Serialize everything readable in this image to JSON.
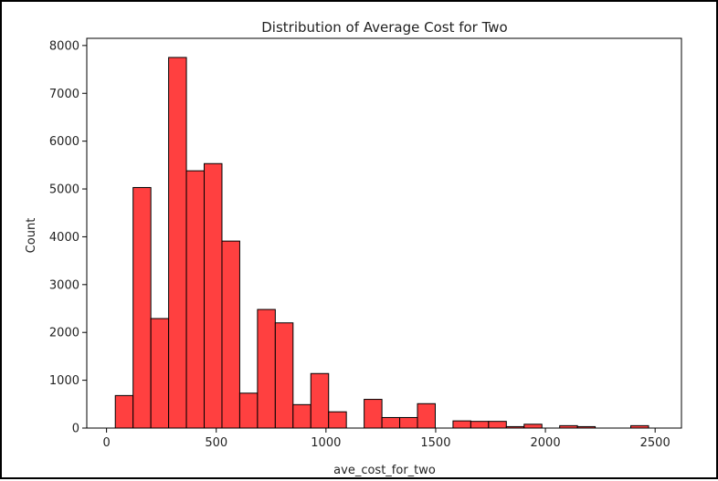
{
  "chart_data": {
    "type": "bar",
    "title": "Distribution of Average Cost for Two",
    "xlabel": "ave_cost_for_two",
    "ylabel": "Count",
    "bar_color": "#ff4040",
    "edge_color": "#000000",
    "xlim": [
      -90,
      2620
    ],
    "ylim": [
      0,
      8150
    ],
    "xticks": [
      0,
      500,
      1000,
      1500,
      2000,
      2500
    ],
    "yticks": [
      0,
      1000,
      2000,
      3000,
      4000,
      5000,
      6000,
      7000,
      8000
    ],
    "bin_edges": [
      40,
      121,
      202,
      283,
      364,
      445,
      526,
      607,
      688,
      769,
      850,
      931,
      1012,
      1093,
      1174,
      1255,
      1336,
      1417,
      1498,
      1579,
      1660,
      1741,
      1822,
      1903,
      1984,
      2065,
      2146,
      2227,
      2308,
      2389,
      2470
    ],
    "counts": [
      680,
      5030,
      2290,
      7750,
      5380,
      5530,
      3910,
      730,
      2480,
      2200,
      490,
      1140,
      340,
      0,
      600,
      220,
      220,
      510,
      0,
      150,
      140,
      140,
      30,
      80,
      0,
      50,
      30,
      0,
      0,
      50
    ],
    "grid": false
  }
}
